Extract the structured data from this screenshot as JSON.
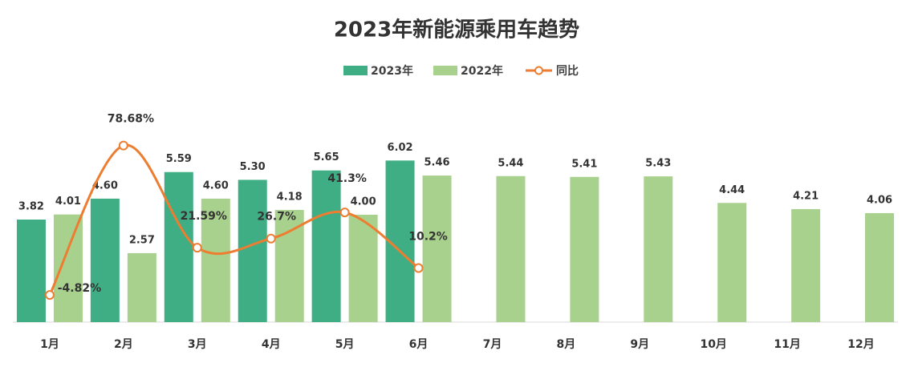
{
  "chart_data": {
    "type": "bar",
    "title": "2023年新能源乘用车趋势",
    "categories": [
      "1月",
      "2月",
      "3月",
      "4月",
      "5月",
      "6月",
      "7月",
      "8月",
      "9月",
      "10月",
      "11月",
      "12月"
    ],
    "ylim": [
      0,
      8
    ],
    "y2lim": [
      -20,
      100
    ],
    "grid": false,
    "series": [
      {
        "name": "2023年",
        "type": "bar",
        "color": "#3fae84",
        "values": [
          3.82,
          4.6,
          5.59,
          5.3,
          5.65,
          6.02,
          null,
          null,
          null,
          null,
          null,
          null
        ],
        "value_labels": [
          "3.82",
          "4.60",
          "5.59",
          "5.30",
          "5.65",
          "6.02",
          null,
          null,
          null,
          null,
          null,
          null
        ]
      },
      {
        "name": "2022年",
        "type": "bar",
        "color": "#a9d18e",
        "values": [
          4.01,
          2.57,
          4.6,
          4.18,
          4.0,
          5.46,
          5.44,
          5.41,
          5.43,
          4.44,
          4.21,
          4.06
        ],
        "value_labels": [
          "4.01",
          "2.57",
          "4.60",
          "4.18",
          "4.00",
          "5.46",
          "5.44",
          "5.41",
          "5.43",
          "4.44",
          "4.21",
          "4.06"
        ]
      },
      {
        "name": "同比",
        "type": "line",
        "axis": "y2",
        "color": "#ed7d31",
        "values": [
          -4.82,
          78.68,
          21.59,
          26.7,
          41.3,
          10.2,
          null,
          null,
          null,
          null,
          null,
          null
        ],
        "value_labels": [
          "-4.82%",
          "78.68%",
          "21.59%",
          "26.7%",
          "41.3%",
          "10.2%",
          null,
          null,
          null,
          null,
          null,
          null
        ]
      }
    ]
  }
}
